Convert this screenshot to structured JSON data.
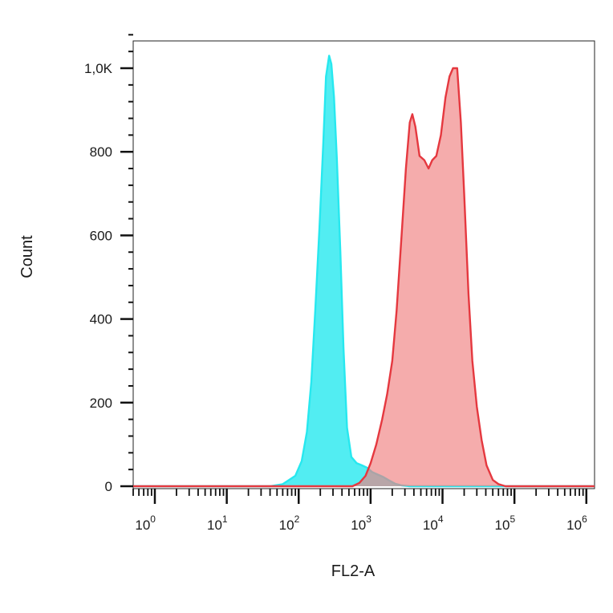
{
  "chart_data": {
    "type": "area",
    "title": "",
    "xlabel": "FL2-A",
    "ylabel": "Count",
    "x_scale": "log",
    "xlim": [
      0.5,
      1300000
    ],
    "ylim": [
      0,
      1100
    ],
    "x_ticks": [
      {
        "base": "10",
        "exp": "0",
        "value": 1
      },
      {
        "base": "10",
        "exp": "1",
        "value": 10
      },
      {
        "base": "10",
        "exp": "2",
        "value": 100
      },
      {
        "base": "10",
        "exp": "3",
        "value": 1000
      },
      {
        "base": "10",
        "exp": "4",
        "value": 10000
      },
      {
        "base": "10",
        "exp": "5",
        "value": 100000
      },
      {
        "base": "10",
        "exp": "6",
        "value": 1000000
      }
    ],
    "y_ticks": [
      {
        "label": "0",
        "value": 0
      },
      {
        "label": "200",
        "value": 200
      },
      {
        "label": "400",
        "value": 400
      },
      {
        "label": "600",
        "value": 600
      },
      {
        "label": "800",
        "value": 800
      },
      {
        "label": "1,0K",
        "value": 1000
      }
    ],
    "grid": false,
    "legend": "none",
    "series": [
      {
        "color": "#27e8ef",
        "fill": "#27e8ef",
        "fill_opacity": 0.8,
        "points": [
          [
            0.5,
            0
          ],
          [
            40,
            0
          ],
          [
            60,
            5
          ],
          [
            90,
            25
          ],
          [
            110,
            60
          ],
          [
            130,
            130
          ],
          [
            150,
            250
          ],
          [
            170,
            420
          ],
          [
            195,
            620
          ],
          [
            220,
            820
          ],
          [
            240,
            980
          ],
          [
            265,
            1030
          ],
          [
            285,
            1010
          ],
          [
            310,
            930
          ],
          [
            340,
            780
          ],
          [
            380,
            560
          ],
          [
            420,
            330
          ],
          [
            470,
            140
          ],
          [
            540,
            70
          ],
          [
            640,
            55
          ],
          [
            760,
            50
          ],
          [
            900,
            44
          ],
          [
            1050,
            34
          ],
          [
            1250,
            28
          ],
          [
            1500,
            22
          ],
          [
            1800,
            14
          ],
          [
            2200,
            6
          ],
          [
            2700,
            2
          ],
          [
            3500,
            0
          ],
          [
            1300000,
            0
          ]
        ]
      },
      {
        "color": "#e5383f",
        "fill": "#f08080",
        "fill_opacity": 0.65,
        "points": [
          [
            0.5,
            0
          ],
          [
            560,
            0
          ],
          [
            700,
            8
          ],
          [
            850,
            25
          ],
          [
            1000,
            55
          ],
          [
            1200,
            100
          ],
          [
            1450,
            160
          ],
          [
            1700,
            220
          ],
          [
            2000,
            300
          ],
          [
            2300,
            420
          ],
          [
            2700,
            600
          ],
          [
            3100,
            760
          ],
          [
            3500,
            870
          ],
          [
            3800,
            890
          ],
          [
            4200,
            860
          ],
          [
            4800,
            790
          ],
          [
            5600,
            780
          ],
          [
            6400,
            760
          ],
          [
            7200,
            780
          ],
          [
            8200,
            790
          ],
          [
            9500,
            840
          ],
          [
            11000,
            930
          ],
          [
            12500,
            980
          ],
          [
            14000,
            1000
          ],
          [
            16000,
            1000
          ],
          [
            18000,
            870
          ],
          [
            20000,
            700
          ],
          [
            23000,
            460
          ],
          [
            26000,
            300
          ],
          [
            30000,
            190
          ],
          [
            35000,
            110
          ],
          [
            41000,
            50
          ],
          [
            50000,
            15
          ],
          [
            60000,
            5
          ],
          [
            75000,
            0
          ],
          [
            1300000,
            0
          ]
        ]
      }
    ]
  }
}
